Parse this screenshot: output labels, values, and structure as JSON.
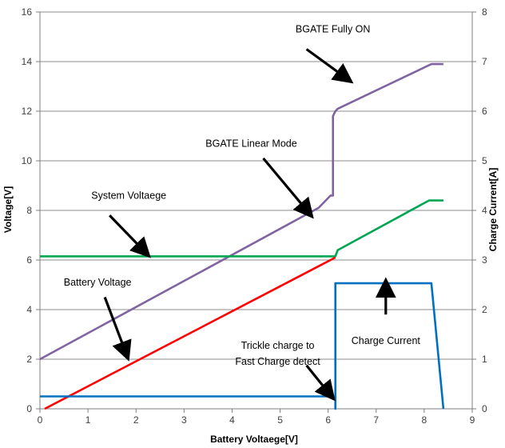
{
  "chart_data": {
    "type": "line",
    "xlabel": "Battery Voltaege[V]",
    "ylabel": "Voltage[V]",
    "y2label": "Charge Current[A]",
    "xlim": [
      0,
      9
    ],
    "ylim": [
      0,
      16
    ],
    "y2lim": [
      0,
      8
    ],
    "x_ticks": [
      "0",
      "1",
      "2",
      "3",
      "4",
      "5",
      "6",
      "7",
      "8",
      "9"
    ],
    "y_ticks": [
      "0",
      "2",
      "4",
      "6",
      "8",
      "10",
      "12",
      "14",
      "16"
    ],
    "y2_ticks": [
      "0",
      "1",
      "2",
      "3",
      "4",
      "5",
      "6",
      "7",
      "8"
    ],
    "grid": "horizontal",
    "legend": "none",
    "series": [
      {
        "color": "#8064a2",
        "axis": "left",
        "points": [
          [
            0,
            2
          ],
          [
            5.8,
            8.1
          ],
          [
            6.05,
            8.6
          ],
          [
            6.1,
            8.6
          ],
          [
            6.1,
            11.8
          ],
          [
            6.15,
            12.0
          ],
          [
            6.2,
            12.1
          ],
          [
            8.15,
            13.9
          ],
          [
            8.4,
            13.9
          ]
        ]
      },
      {
        "color": "#00a651",
        "axis": "left",
        "points": [
          [
            0,
            6.15
          ],
          [
            6.15,
            6.15
          ],
          [
            6.2,
            6.4
          ],
          [
            8.1,
            8.4
          ],
          [
            8.4,
            8.4
          ]
        ]
      },
      {
        "color": "#ff0000",
        "axis": "left",
        "points": [
          [
            0.1,
            0
          ],
          [
            6.15,
            6.1
          ]
        ]
      },
      {
        "color": "#0070c0",
        "axis": "right",
        "points": [
          [
            0,
            0.25
          ],
          [
            6.15,
            0.25
          ],
          [
            6.15,
            0
          ],
          [
            6.15,
            2.53
          ],
          [
            8.15,
            2.53
          ],
          [
            8.4,
            0
          ]
        ]
      }
    ],
    "annotations": [
      {
        "id": "bgate-on",
        "text": "BGATE Fully ON",
        "tx": 6.1,
        "ty": 15.3,
        "ax1": 5.55,
        "ay1": 14.5,
        "ax2": 6.4,
        "ay2": 13.3
      },
      {
        "id": "bgate-linear",
        "text": "BGATE Linear Mode",
        "tx": 4.4,
        "ty": 10.7,
        "ax1": 4.65,
        "ay1": 10.1,
        "ax2": 5.6,
        "ay2": 7.9
      },
      {
        "id": "system-voltage",
        "text": "System Voltaege",
        "tx": 1.85,
        "ty": 8.6,
        "ax1": 1.45,
        "ay1": 7.8,
        "ax2": 2.2,
        "ay2": 6.3
      },
      {
        "id": "battery-voltage",
        "text": "Battery Voltage",
        "tx": 1.2,
        "ty": 5.1,
        "ax1": 1.35,
        "ay1": 4.5,
        "ax2": 1.8,
        "ay2": 2.2
      },
      {
        "id": "trickle-1",
        "text": "Trickle charge to",
        "tx": 4.95,
        "ty": 2.55,
        "ax1": 5.55,
        "ay1": 1.75,
        "ax2": 6.05,
        "ay2": 0.55
      },
      {
        "id": "trickle-2",
        "text": "Fast Charge detect",
        "tx": 4.95,
        "ty": 1.9
      },
      {
        "id": "charge-current",
        "text": "Charge Current",
        "tx": 7.2,
        "ty": 2.75,
        "ax1": 7.2,
        "ay1": 3.8,
        "ax2": 7.2,
        "ay2": 5.0
      }
    ]
  }
}
